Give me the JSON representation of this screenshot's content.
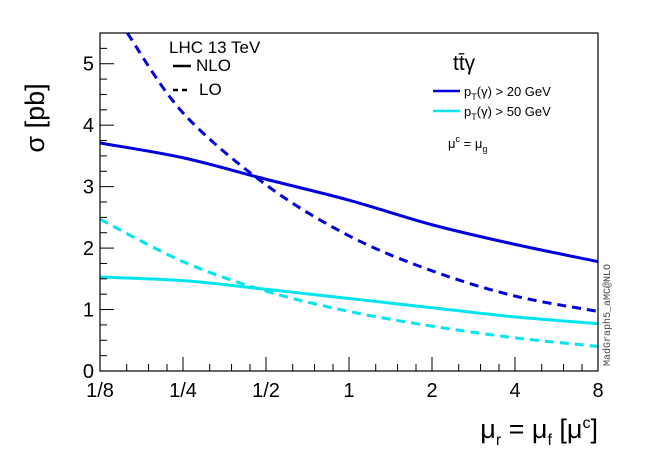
{
  "chart_data": {
    "type": "line",
    "title": "",
    "xlabel": {
      "base": "μ",
      "sub1": "r",
      "mid": " = μ",
      "sub2": "f",
      "bracket_open": " [μ",
      "sup": "c",
      "bracket_close": "]"
    },
    "ylabel": "σ [pb]",
    "xscale": "log2",
    "xlim": [
      0.125,
      8
    ],
    "ylim": [
      0,
      5.5
    ],
    "x_ticks": [
      {
        "value": 0.125,
        "label": "1/8"
      },
      {
        "value": 0.25,
        "label": "1/4"
      },
      {
        "value": 0.5,
        "label": "1/2"
      },
      {
        "value": 1,
        "label": "1"
      },
      {
        "value": 2,
        "label": "2"
      },
      {
        "value": 4,
        "label": "4"
      },
      {
        "value": 8,
        "label": "8"
      }
    ],
    "y_ticks": [
      {
        "value": 0,
        "label": "0"
      },
      {
        "value": 1,
        "label": "1"
      },
      {
        "value": 2,
        "label": "2"
      },
      {
        "value": 3,
        "label": "3"
      },
      {
        "value": 4,
        "label": "4"
      },
      {
        "value": 5,
        "label": "5"
      }
    ],
    "x": [
      0.125,
      0.25,
      0.5,
      1,
      2,
      4,
      8
    ],
    "series": [
      {
        "name": "NLO pT(γ) > 20 GeV",
        "order": "NLO",
        "cut": "20",
        "color": "#0000dd",
        "style": "solid",
        "x": [
          0.125,
          0.25,
          0.5,
          1,
          2,
          4,
          8
        ],
        "values": [
          3.71,
          3.47,
          3.12,
          2.78,
          2.38,
          2.06,
          1.78
        ]
      },
      {
        "name": "LO pT(γ) > 20 GeV",
        "order": "LO",
        "cut": "20",
        "color": "#0000dd",
        "style": "dashed",
        "x": [
          0.157,
          0.25,
          0.5,
          1,
          2,
          4,
          8
        ],
        "values": [
          5.5,
          4.2,
          3.03,
          2.2,
          1.63,
          1.22,
          0.97
        ]
      },
      {
        "name": "NLO pT(γ) > 50 GeV",
        "order": "NLO",
        "cut": "50",
        "color": "#00e5ee",
        "style": "solid",
        "x": [
          0.125,
          0.25,
          0.5,
          1,
          2,
          4,
          8
        ],
        "values": [
          1.53,
          1.47,
          1.33,
          1.18,
          1.03,
          0.88,
          0.77
        ]
      },
      {
        "name": "LO pT(γ) > 50 GeV",
        "order": "LO",
        "cut": "50",
        "color": "#00e5ee",
        "style": "dashed",
        "x": [
          0.125,
          0.25,
          0.5,
          1,
          2,
          4,
          8
        ],
        "values": [
          2.47,
          1.78,
          1.3,
          0.97,
          0.73,
          0.54,
          0.4
        ]
      }
    ],
    "legend": {
      "header": "LHC 13 TeV",
      "style_entries": [
        {
          "label": "NLO",
          "style": "solid"
        },
        {
          "label": "LO",
          "style": "dashed"
        }
      ],
      "process": "tt̄γ",
      "cut_entries": [
        {
          "base": "p",
          "sub": "T",
          "rest": "(γ) > 20 GeV",
          "color": "#0000dd"
        },
        {
          "base": "p",
          "sub": "T",
          "rest": "(γ) > 50 GeV",
          "color": "#00e5ee"
        }
      ],
      "note": {
        "base1": "μ",
        "sup": "c",
        "mid": " = μ",
        "sub": "g"
      }
    },
    "watermark": "MadGraph5_aMC@NLO"
  }
}
